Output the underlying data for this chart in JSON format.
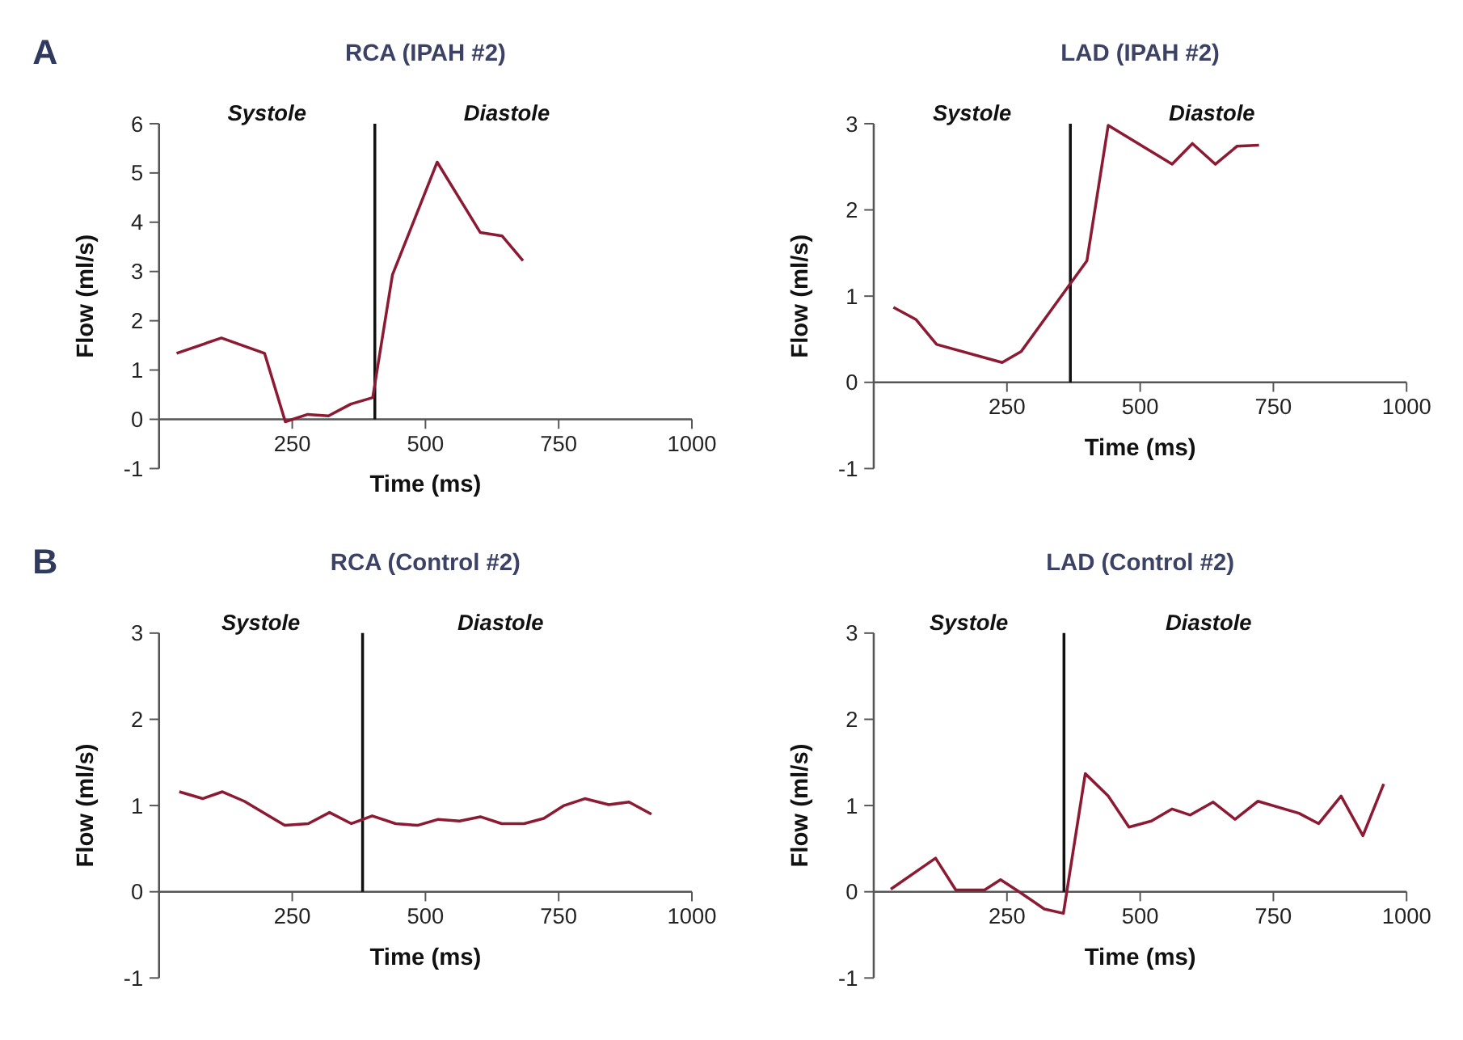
{
  "chart_data": [
    {
      "type": "line",
      "title": "RCA (IPAH #2)",
      "xlabel": "Time (ms)",
      "ylabel": "Flow (ml/s)",
      "xlim": [
        0,
        1000
      ],
      "xticks": [
        250,
        500,
        750,
        1000
      ],
      "ylim": [
        -1,
        6
      ],
      "yticks": [
        -1,
        0,
        1,
        2,
        3,
        4,
        5,
        6
      ],
      "grid": false,
      "ref_lines": [
        {
          "axis": "x",
          "value": 405,
          "color": "#111111"
        }
      ],
      "annotations": [
        "A",
        "Systole",
        "Diastole"
      ],
      "series": [
        {
          "color": "#8b1a32",
          "x": [
            33,
            117,
            198,
            237,
            279,
            318,
            360,
            401,
            438,
            522,
            603,
            644,
            683
          ],
          "values": [
            1.34,
            1.65,
            1.34,
            -0.05,
            0.1,
            0.07,
            0.31,
            0.44,
            2.93,
            5.22,
            3.79,
            3.72,
            3.22
          ]
        }
      ]
    },
    {
      "type": "line",
      "title": "LAD (IPAH #2)",
      "xlabel": "Time (ms)",
      "ylabel": "Flow (ml/s)",
      "xlim": [
        0,
        1000
      ],
      "xticks": [
        250,
        500,
        750,
        1000
      ],
      "ylim": [
        -1,
        3
      ],
      "yticks": [
        -1,
        0,
        1,
        2,
        3
      ],
      "grid": false,
      "ref_lines": [
        {
          "axis": "x",
          "value": 369,
          "color": "#111111"
        }
      ],
      "annotations": [
        "Systole",
        "Diastole"
      ],
      "series": [
        {
          "color": "#8b1a32",
          "x": [
            37,
            79,
            118,
            241,
            277,
            400,
            440,
            560,
            598,
            641,
            682,
            723
          ],
          "values": [
            0.87,
            0.73,
            0.44,
            0.23,
            0.36,
            1.41,
            2.98,
            2.53,
            2.77,
            2.53,
            2.74,
            2.75
          ]
        }
      ]
    },
    {
      "type": "line",
      "title": "RCA (Control #2)",
      "xlabel": "Time (ms)",
      "ylabel": "Flow (ml/s)",
      "xlim": [
        0,
        1000
      ],
      "xticks": [
        250,
        500,
        750,
        1000
      ],
      "ylim": [
        -1,
        3
      ],
      "yticks": [
        -1,
        0,
        1,
        2,
        3
      ],
      "grid": false,
      "ref_lines": [
        {
          "axis": "x",
          "value": 382,
          "color": "#111111"
        }
      ],
      "annotations": [
        "B",
        "Systole",
        "Diastole"
      ],
      "series": [
        {
          "color": "#8b1a32",
          "x": [
            38,
            82,
            119,
            160,
            236,
            280,
            320,
            361,
            400,
            444,
            485,
            524,
            564,
            603,
            643,
            685,
            722,
            760,
            799,
            844,
            882,
            924
          ],
          "values": [
            1.16,
            1.08,
            1.16,
            1.05,
            0.77,
            0.79,
            0.92,
            0.79,
            0.88,
            0.79,
            0.77,
            0.84,
            0.82,
            0.87,
            0.79,
            0.79,
            0.85,
            1.0,
            1.08,
            1.01,
            1.04,
            0.9
          ]
        }
      ]
    },
    {
      "type": "line",
      "title": "LAD (Control #2)",
      "xlabel": "Time (ms)",
      "ylabel": "Flow (ml/s)",
      "xlim": [
        0,
        1000
      ],
      "xticks": [
        250,
        500,
        750,
        1000
      ],
      "ylim": [
        -1,
        3
      ],
      "yticks": [
        -1,
        0,
        1,
        2,
        3
      ],
      "grid": false,
      "ref_lines": [
        {
          "axis": "x",
          "value": 357,
          "color": "#111111"
        }
      ],
      "annotations": [
        "Systole",
        "Diastole"
      ],
      "series": [
        {
          "color": "#8b1a32",
          "x": [
            32,
            116,
            154,
            208,
            238,
            273,
            320,
            356,
            397,
            440,
            479,
            521,
            560,
            594,
            637,
            678,
            721,
            798,
            835,
            877,
            918,
            957
          ],
          "values": [
            0.03,
            0.39,
            0.02,
            0.02,
            0.14,
            0.0,
            -0.2,
            -0.25,
            1.37,
            1.11,
            0.75,
            0.82,
            0.96,
            0.89,
            1.04,
            0.84,
            1.05,
            0.91,
            0.79,
            1.11,
            0.65,
            1.25
          ]
        }
      ]
    }
  ]
}
